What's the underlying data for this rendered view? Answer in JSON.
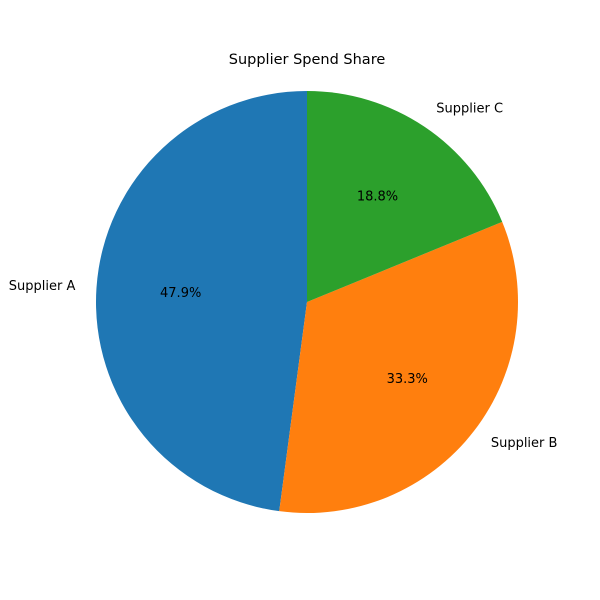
{
  "chart_data": {
    "type": "pie",
    "title": "Supplier Spend Share",
    "start_angle_deg": 90,
    "direction": "counterclockwise",
    "slices": [
      {
        "label": "Supplier A",
        "value": 47.9,
        "pct_label": "47.9%",
        "color": "#1f77b4"
      },
      {
        "label": "Supplier B",
        "value": 33.3,
        "pct_label": "33.3%",
        "color": "#ff7f0e"
      },
      {
        "label": "Supplier C",
        "value": 18.8,
        "pct_label": "18.8%",
        "color": "#2ca02c"
      }
    ]
  }
}
